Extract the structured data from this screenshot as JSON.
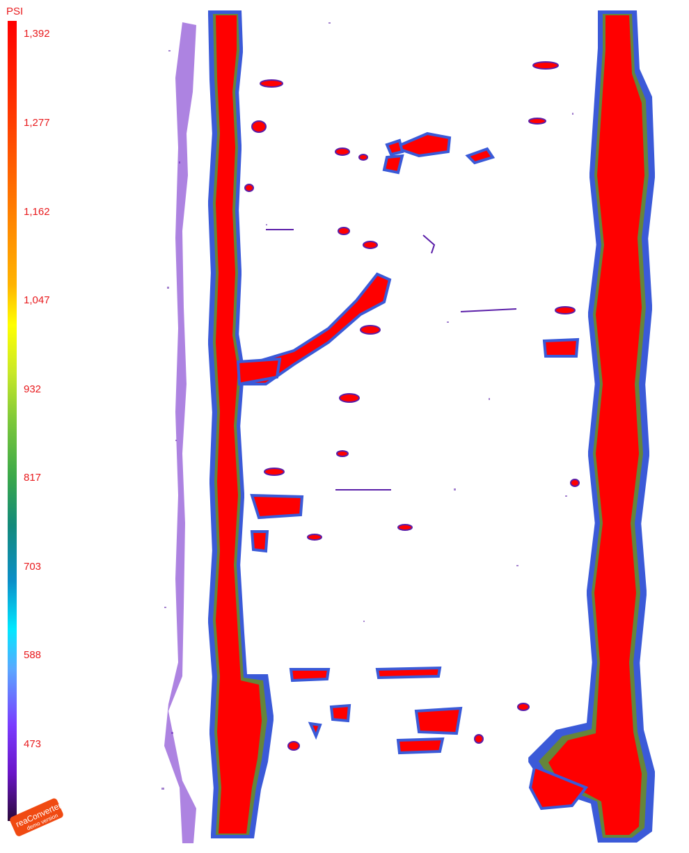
{
  "scale": {
    "unit": "PSI",
    "ticks": [
      "1,392",
      "1,277",
      "1,162",
      "1,047",
      "932",
      "817",
      "703",
      "588",
      "473"
    ]
  },
  "watermark": {
    "brand": "reaConverter",
    "note": "demo version"
  },
  "colors": {
    "high": "#ff0000",
    "low": "#2a0a3a",
    "label": "#e8191c"
  }
}
